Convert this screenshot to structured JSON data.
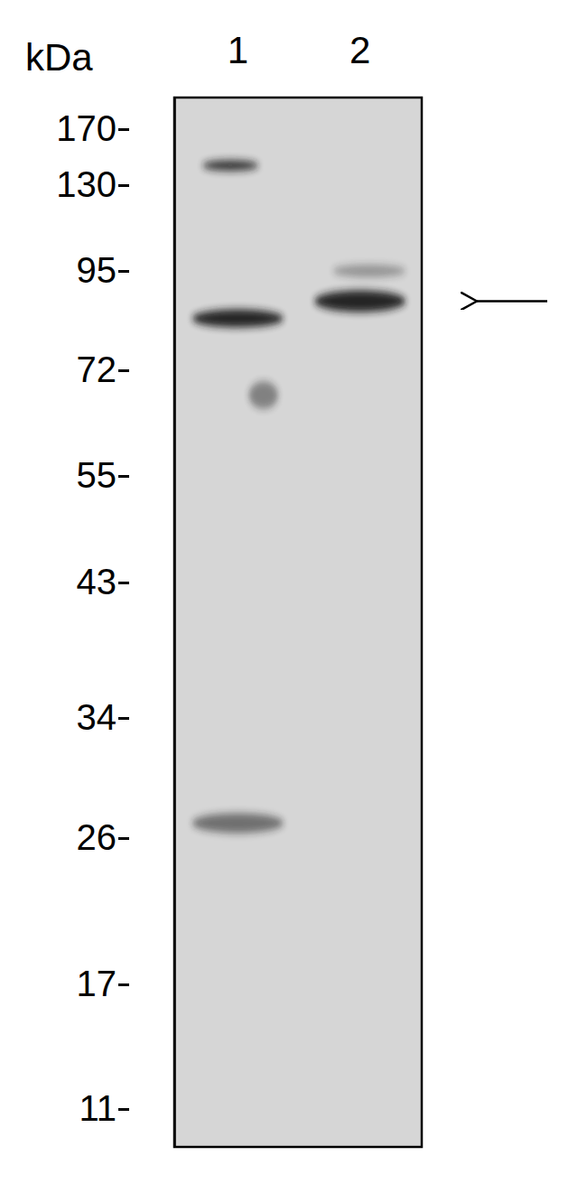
{
  "chart_data": {
    "type": "western_blot",
    "y_label": "kDa",
    "ylim": [
      9,
      192
    ],
    "yticks": [
      170,
      130,
      95,
      72,
      55,
      43,
      34,
      26,
      17,
      11
    ],
    "lanes": [
      {
        "label": "1",
        "bands": [
          144,
          84,
          68,
          27
        ]
      },
      {
        "label": "2",
        "bands": [
          95,
          88
        ]
      }
    ],
    "arrow_kda": 88
  }
}
